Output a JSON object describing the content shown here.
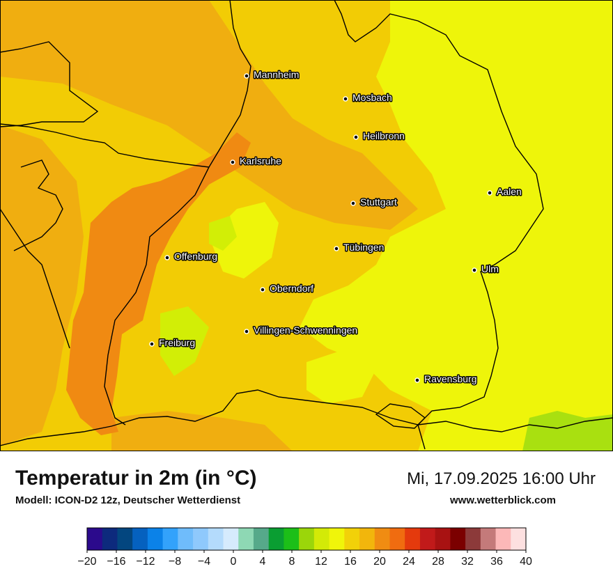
{
  "map": {
    "title": "Temperatur in 2m (in °C)",
    "model": "Modell: ICON-D2 12z, Deutscher Wetterdienst",
    "datetime": "Mi, 17.09.2025 16:00 Uhr",
    "website": "www.wetterblick.com",
    "cities": [
      {
        "id": "mannheim",
        "name": "Mannheim"
      },
      {
        "id": "mosbach",
        "name": "Mosbach"
      },
      {
        "id": "heilbronn",
        "name": "Heilbronn"
      },
      {
        "id": "karlsruhe",
        "name": "Karlsruhe"
      },
      {
        "id": "aalen",
        "name": "Aalen"
      },
      {
        "id": "stuttgart",
        "name": "Stuttgart"
      },
      {
        "id": "tuebingen",
        "name": "Tübingen"
      },
      {
        "id": "offenburg",
        "name": "Offenburg"
      },
      {
        "id": "ulm",
        "name": "Ulm"
      },
      {
        "id": "oberndorf",
        "name": "Oberndorf"
      },
      {
        "id": "villingen",
        "name": "Villingen-Schwenningen"
      },
      {
        "id": "freiburg",
        "name": "Freiburg"
      },
      {
        "id": "ravensburg",
        "name": "Ravensburg"
      }
    ]
  },
  "colors": {
    "base": "#f2cc05",
    "warm": "#f0ae10",
    "hot": "#f08a12",
    "cool": "#eef50a",
    "cooler": "#d2ee06",
    "green": "#a9e010"
  },
  "legend": {
    "ticks": [
      "−20",
      "−16",
      "−12",
      "−8",
      "−4",
      "0",
      "4",
      "8",
      "12",
      "16",
      "20",
      "24",
      "28",
      "32",
      "36",
      "40"
    ],
    "colors": [
      "#2b0a8c",
      "#0d2a7d",
      "#03467f",
      "#0561bf",
      "#0b82e8",
      "#33a2fb",
      "#6fbcfb",
      "#8fc9fc",
      "#b4dbfc",
      "#d6ebfd",
      "#8ed8b4",
      "#56a98a",
      "#0a9e32",
      "#1cbf18",
      "#9bd60a",
      "#d3ea07",
      "#f0f50a",
      "#f2d109",
      "#f2b60c",
      "#f08c12",
      "#f06c10",
      "#e43a0d",
      "#c11a1a",
      "#a81212",
      "#7b0000",
      "#8c3a3a",
      "#c47a7a",
      "#fcb8b8",
      "#fde0e0"
    ]
  }
}
